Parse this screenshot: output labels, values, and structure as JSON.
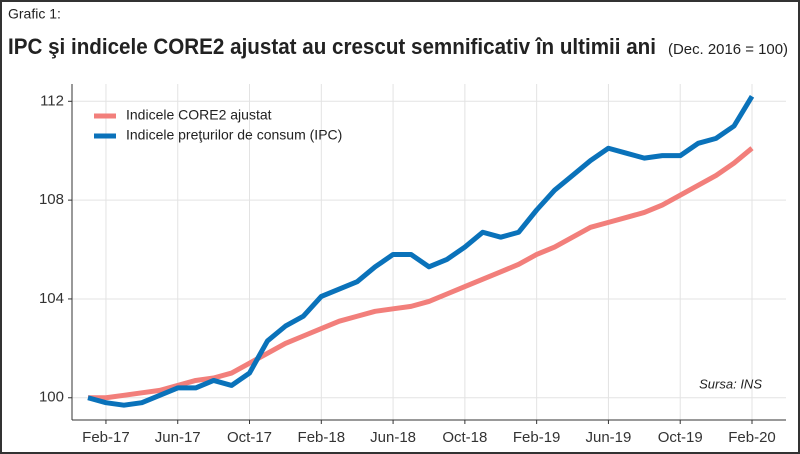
{
  "chart_data": {
    "type": "line",
    "label": "Grafic 1:",
    "title": "IPC şi indicele CORE2 ajustat au crescut semnificativ în ultimii ani",
    "subtitle": "(Dec. 2016 = 100)",
    "source": "Sursa: INS",
    "categories": [
      null,
      "Feb-17",
      null,
      null,
      null,
      "Jun-17",
      null,
      null,
      null,
      "Oct-17",
      null,
      null,
      null,
      "Feb-18",
      null,
      null,
      null,
      "Jun-18",
      null,
      null,
      null,
      "Oct-18",
      null,
      null,
      null,
      "Feb-19",
      null,
      null,
      null,
      "Jun-19",
      null,
      null,
      null,
      "Oct-19",
      null,
      null,
      null,
      "Feb-20"
    ],
    "series": [
      {
        "name": "Indicele CORE2 ajustat",
        "color": "#f27f7b",
        "values": [
          100.0,
          100.0,
          100.1,
          100.2,
          100.3,
          100.5,
          100.7,
          100.8,
          101.0,
          101.4,
          101.8,
          102.2,
          102.5,
          102.8,
          103.1,
          103.3,
          103.5,
          103.6,
          103.7,
          103.9,
          104.2,
          104.5,
          104.8,
          105.1,
          105.4,
          105.8,
          106.1,
          106.5,
          106.9,
          107.1,
          107.3,
          107.5,
          107.8,
          108.2,
          108.6,
          109.0,
          109.5,
          110.1
        ]
      },
      {
        "name": "Indicele preţurilor de consum (IPC)",
        "color": "#0a72ba",
        "values": [
          100.0,
          99.8,
          99.7,
          99.8,
          100.1,
          100.4,
          100.4,
          100.7,
          100.5,
          101.0,
          102.3,
          102.9,
          103.3,
          104.1,
          104.4,
          104.7,
          105.3,
          105.8,
          105.8,
          105.3,
          105.6,
          106.1,
          106.7,
          106.5,
          106.7,
          107.6,
          108.4,
          109.0,
          109.6,
          110.1,
          109.9,
          109.7,
          109.8,
          109.8,
          110.3,
          110.5,
          111.0,
          112.2
        ]
      }
    ],
    "ylim": [
      99.1,
      112.7
    ],
    "yticks": [
      100,
      104,
      108,
      112
    ],
    "grid": true,
    "legend": "top-left"
  }
}
